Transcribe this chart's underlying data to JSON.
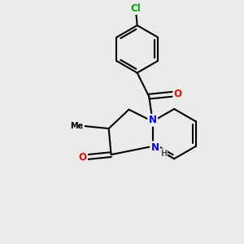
{
  "background_color": "#ebebeb",
  "bond_color": "#000000",
  "bond_width": 1.5,
  "atom_colors": {
    "N": "#0000ff",
    "O": "#ff0000",
    "Cl": "#00aa00",
    "C": "#000000",
    "H": "#555555"
  },
  "font_size_atoms": 8.5,
  "font_size_small": 7.0
}
